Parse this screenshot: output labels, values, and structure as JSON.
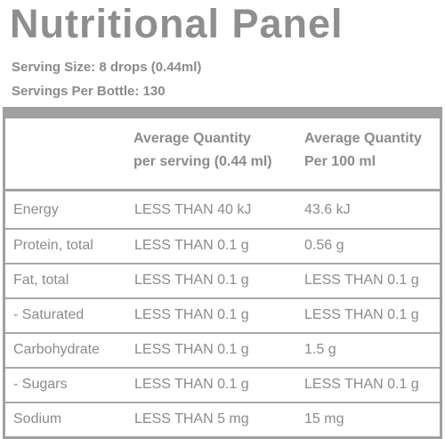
{
  "panel": {
    "title": "Nutritional Panel",
    "serving_size": "Serving Size: 8 drops (0.44ml)",
    "servings_per_bottle": "Servings Per Bottle: 130"
  },
  "table": {
    "headers": [
      {
        "line1": "Average Quantity",
        "line2": "per serving (0.44 ml)"
      },
      {
        "line1": "Average Quantity",
        "line2": "Per 100 ml"
      }
    ],
    "rows": [
      {
        "nutrient": "Energy",
        "per_serving": "LESS THAN 40 kJ",
        "per_100ml": "43.6 kJ"
      },
      {
        "nutrient": "Protein, total",
        "per_serving": "LESS THAN 0.1 g",
        "per_100ml": "0.56 g"
      },
      {
        "nutrient": "Fat, total",
        "per_serving": "LESS THAN 0.1 g",
        "per_100ml": "LESS THAN 0.1 g"
      },
      {
        "nutrient": "- Saturated",
        "per_serving": "LESS THAN 0.1 g",
        "per_100ml": "LESS THAN 0.1 g"
      },
      {
        "nutrient": "Carbohydrate",
        "per_serving": "LESS THAN 0.1 g",
        "per_100ml": "1.5 g"
      },
      {
        "nutrient": "- Sugars",
        "per_serving": "LESS THAN 0.1 g",
        "per_100ml": "LESS THAN 0.1 g"
      },
      {
        "nutrient": "Sodium",
        "per_serving": "LESS THAN 5 mg",
        "per_100ml": "15 mg"
      }
    ]
  }
}
